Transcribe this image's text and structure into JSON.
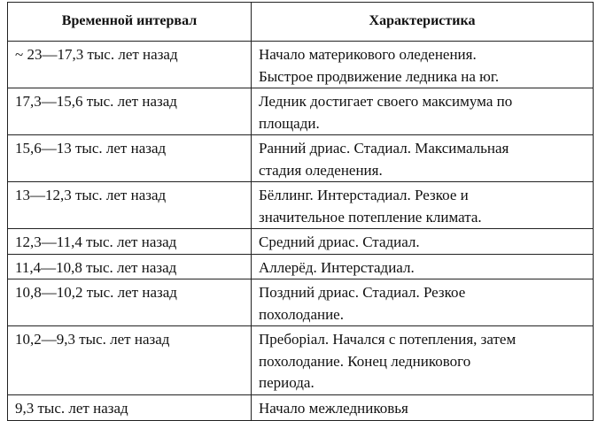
{
  "table": {
    "header": [
      "Временной интервал",
      "Характеристика"
    ],
    "rows": [
      [
        [
          "~ 23—17,3 тыс. лет назад"
        ],
        [
          "Начало материкового оледенения.",
          "Быстрое продвижение ледника на юг."
        ]
      ],
      [
        [
          "17,3—15,6 тыс. лет назад"
        ],
        [
          "Ледник достигает своего максимума по",
          "площади."
        ]
      ],
      [
        [
          "15,6—13 тыс. лет назад"
        ],
        [
          "Ранний дриас. Стадиал. Максимальная",
          "стадия оледенения."
        ]
      ],
      [
        [
          "13—12,3 тыс. лет назад"
        ],
        [
          "Бёллинг. Интерстадиал. Резкое и",
          "значительное потепление климата."
        ]
      ],
      [
        [
          "12,3—11,4 тыс. лет назад"
        ],
        [
          "Средний дриас. Стадиал."
        ]
      ],
      [
        [
          "11,4—10,8 тыс. лет назад"
        ],
        [
          "Аллерёд. Интерстадиал."
        ]
      ],
      [
        [
          "10,8—10,2 тыс. лет назад"
        ],
        [
          "Поздний дриас. Стадиал. Резкое",
          "похолодание."
        ]
      ],
      [
        [
          "10,2—9,3 тыс. лет назад"
        ],
        [
          "Преборіал. Начался с потепления, затем",
          "похолодание. Конец ледникового",
          "периода."
        ]
      ],
      [
        [
          "9,3 тыс. лет назад"
        ],
        [
          "Начало межледниковья"
        ]
      ]
    ]
  }
}
